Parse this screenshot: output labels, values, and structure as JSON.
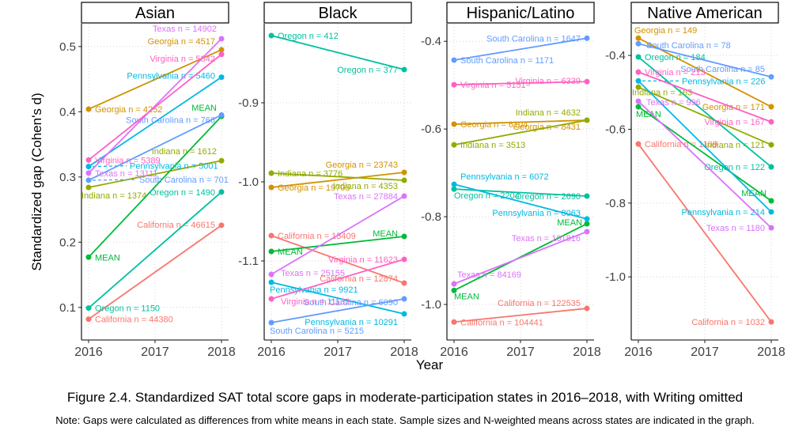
{
  "figure": {
    "caption": "Figure 2.4. Standardized SAT total score gaps in moderate-participation states in 2016–2018, with Writing omitted",
    "note": "Note: Gaps were calculated as differences from white means in each state. Sample sizes and N-weighted means across states are indicated in the graph."
  },
  "chart_data": {
    "type": "line",
    "x_years": [
      2016,
      2018
    ],
    "x_ticks": [
      "2016",
      "2017",
      "2018"
    ],
    "xlabel": "Year",
    "ylabel": "Standardized gap (Cohen's d)",
    "mean_label": "MEAN",
    "colors": {
      "California": "#F8766D",
      "Georgia": "#D39200",
      "Indiana": "#93AA00",
      "MEAN": "#00BA38",
      "Oregon": "#00C19F",
      "Pennsylvania": "#00B9E3",
      "South Carolina": "#619CFF",
      "Texas": "#DB72FB",
      "Virginia": "#FF61C3"
    },
    "facets": [
      {
        "title": "Asian",
        "ylim": [
          0.05,
          0.535
        ],
        "yticks": [
          0.5,
          0.4,
          0.3,
          0.2,
          0.1
        ],
        "series": [
          {
            "state": "California",
            "n": [
              44380,
              46615
            ],
            "values": [
              0.082,
              0.226
            ],
            "labels": [
              "California n = 44380",
              "California n = 46615"
            ]
          },
          {
            "state": "Georgia",
            "n": [
              4252,
              4517
            ],
            "values": [
              0.404,
              0.495
            ],
            "labels": [
              "Georgia n = 4252",
              "Georgia n = 4517"
            ]
          },
          {
            "state": "Indiana",
            "n": [
              1374,
              1612
            ],
            "values": [
              0.284,
              0.325
            ],
            "labels": [
              "Indiana n = 1374",
              "Indiana n = 1612"
            ]
          },
          {
            "state": "MEAN",
            "values": [
              0.177,
              0.393
            ],
            "labels": [
              "MEAN",
              "MEAN"
            ]
          },
          {
            "state": "Oregon",
            "n": [
              1150,
              1490
            ],
            "values": [
              0.099,
              0.277
            ],
            "labels": [
              "Oregon n = 1150",
              "Oregon n = 1490"
            ]
          },
          {
            "state": "Pennsylvania",
            "n": [
              5001,
              5460
            ],
            "values": [
              0.316,
              0.453
            ],
            "labels": [
              "Pennsylvania n = 5001",
              "Pennsylvania n = 5460"
            ]
          },
          {
            "state": "South Carolina",
            "n": [
              701,
              766
            ],
            "values": [
              0.295,
              0.395
            ],
            "labels": [
              "South Carolina n = 701",
              "South Carolina n = 766"
            ]
          },
          {
            "state": "Texas",
            "n": [
              13111,
              14902
            ],
            "values": [
              0.306,
              0.512
            ],
            "labels": [
              "Texas n = 13111",
              "Texas n = 14902"
            ]
          },
          {
            "state": "Virginia",
            "n": [
              5389,
              5842
            ],
            "values": [
              0.326,
              0.488
            ],
            "labels": [
              "Virginia n = 5389",
              "Virginia n = 5842"
            ]
          }
        ]
      },
      {
        "title": "Black",
        "ylim": [
          -1.2,
          -0.8
        ],
        "yticks": [
          -0.9,
          -1.0,
          -1.1
        ],
        "series": [
          {
            "state": "California",
            "n": [
              13409,
              12874
            ],
            "values": [
              -1.068,
              -1.128
            ],
            "labels": [
              "California n = 13409",
              "California n = 12874"
            ]
          },
          {
            "state": "Georgia",
            "n": [
              19705,
              23743
            ],
            "values": [
              -1.007,
              -0.988
            ],
            "labels": [
              "Georgia n = 19705",
              "Georgia n = 23743"
            ]
          },
          {
            "state": "Indiana",
            "n": [
              3776,
              4353
            ],
            "values": [
              -0.989,
              -0.998
            ],
            "labels": [
              "Indiana n = 3776",
              "Indiana n = 4353"
            ]
          },
          {
            "state": "MEAN",
            "values": [
              -1.088,
              -1.069
            ],
            "labels": [
              "MEAN",
              "MEAN"
            ]
          },
          {
            "state": "Oregon",
            "n": [
              412,
              377
            ],
            "values": [
              -0.815,
              -0.858
            ],
            "labels": [
              "Oregon n = 412",
              "Oregon n = 377"
            ]
          },
          {
            "state": "Pennsylvania",
            "n": [
              9921,
              10291
            ],
            "values": [
              -1.127,
              -1.167
            ],
            "labels": [
              "Pennsylvania n = 9921",
              "Pennsylvania n = 10291"
            ]
          },
          {
            "state": "South Carolina",
            "n": [
              5215,
              6090
            ],
            "values": [
              -1.178,
              -1.148
            ],
            "labels": [
              "South Carolina n = 5215",
              "South Carolina n = 6090"
            ]
          },
          {
            "state": "Texas",
            "n": [
              25155,
              27884
            ],
            "values": [
              -1.117,
              -1.018
            ],
            "labels": [
              "Texas n = 25155",
              "Texas n = 27884"
            ]
          },
          {
            "state": "Virginia",
            "n": [
              11133,
              11623
            ],
            "values": [
              -1.148,
              -1.098
            ],
            "labels": [
              "Virginia n = 11133",
              "Virginia n = 11623"
            ]
          }
        ]
      },
      {
        "title": "Hispanic/Latino",
        "ylim": [
          -1.081,
          -0.36
        ],
        "yticks": [
          -0.4,
          -0.6,
          -0.8,
          -1.0
        ],
        "series": [
          {
            "state": "California",
            "n": [
              104441,
              122535
            ],
            "values": [
              -1.04,
              -1.009
            ],
            "labels": [
              "California n = 104441",
              "California n = 122535"
            ]
          },
          {
            "state": "Georgia",
            "n": [
              6104,
              8431
            ],
            "values": [
              -0.589,
              -0.58
            ],
            "labels": [
              "Georgia n = 6104",
              "Georgia n = 8431"
            ]
          },
          {
            "state": "Indiana",
            "n": [
              3513,
              4632
            ],
            "values": [
              -0.636,
              -0.58
            ],
            "labels": [
              "Indiana n = 3513",
              "Indiana n = 4632"
            ]
          },
          {
            "state": "MEAN",
            "values": [
              -0.968,
              -0.816
            ],
            "labels": [
              "MEAN",
              "MEAN"
            ]
          },
          {
            "state": "Oregon",
            "n": [
              2204,
              2690
            ],
            "values": [
              -0.737,
              -0.753
            ],
            "labels": [
              "Oregon n = 2204",
              "Oregon n = 2690"
            ]
          },
          {
            "state": "Pennsylvania",
            "n": [
              6072,
              8063
            ],
            "values": [
              -0.726,
              -0.805
            ],
            "labels": [
              "Pennsylvania n = 6072",
              "Pennsylvania n = 8063"
            ]
          },
          {
            "state": "South Carolina",
            "n": [
              1171,
              1647
            ],
            "values": [
              -0.443,
              -0.393
            ],
            "labels": [
              "South Carolina n = 1171",
              "South Carolina n = 1647"
            ]
          },
          {
            "state": "Texas",
            "n": [
              84169,
              101816
            ],
            "values": [
              -0.953,
              -0.834
            ],
            "labels": [
              "Texas n = 84169",
              "Texas n = 101816"
            ]
          },
          {
            "state": "Virginia",
            "n": [
              5151,
              6339
            ],
            "values": [
              -0.499,
              -0.492
            ],
            "labels": [
              "Virginia n = 5151",
              "Virginia n = 6339"
            ]
          }
        ]
      },
      {
        "title": "Native American",
        "ylim": [
          -1.171,
          -0.314
        ],
        "yticks": [
          -0.4,
          -0.6,
          -0.8,
          -1.0
        ],
        "series": [
          {
            "state": "California",
            "n": [
              1109,
              1032
            ],
            "values": [
              -0.64,
              -1.122
            ],
            "labels": [
              "California n = 1109",
              "California n = 1032"
            ]
          },
          {
            "state": "Georgia",
            "n": [
              149,
              171
            ],
            "values": [
              -0.353,
              -0.539
            ],
            "labels": [
              "Georgia n = 149",
              "Georgia n = 171"
            ]
          },
          {
            "state": "Indiana",
            "n": [
              163,
              121
            ],
            "values": [
              -0.486,
              -0.642
            ],
            "labels": [
              "Indiana n = 163",
              "Indiana n = 121"
            ]
          },
          {
            "state": "MEAN",
            "values": [
              -0.539,
              -0.794
            ],
            "labels": [
              "MEAN",
              "MEAN"
            ]
          },
          {
            "state": "Oregon",
            "n": [
              184,
              122
            ],
            "values": [
              -0.404,
              -0.702
            ],
            "labels": [
              "Oregon n = 184",
              "Oregon n = 122"
            ]
          },
          {
            "state": "Pennsylvania",
            "n": [
              226,
              214
            ],
            "values": [
              -0.469,
              -0.824
            ],
            "labels": [
              "Pennsylvania n = 226",
              "Pennsylvania n = 214"
            ]
          },
          {
            "state": "South Carolina",
            "n": [
              78,
              85
            ],
            "values": [
              -0.368,
              -0.458
            ],
            "labels": [
              "South Carolina n = 78",
              "South Carolina n = 85"
            ]
          },
          {
            "state": "Texas",
            "n": [
              996,
              1180
            ],
            "values": [
              -0.524,
              -0.867
            ],
            "labels": [
              "Texas n = 996",
              "Texas n = 1180"
            ]
          },
          {
            "state": "Virginia",
            "n": [
              213,
              167
            ],
            "values": [
              -0.445,
              -0.58
            ],
            "labels": [
              "Virginia n = 213",
              "Virginia n = 167"
            ]
          }
        ]
      }
    ]
  }
}
